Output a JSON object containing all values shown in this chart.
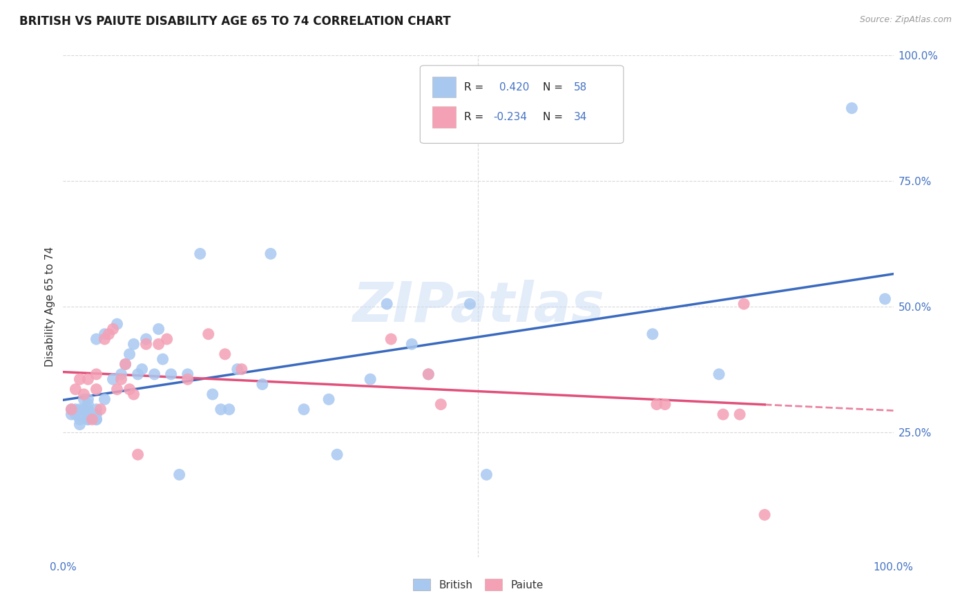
{
  "title": "BRITISH VS PAIUTE DISABILITY AGE 65 TO 74 CORRELATION CHART",
  "source": "Source: ZipAtlas.com",
  "ylabel": "Disability Age 65 to 74",
  "british_R": "0.420",
  "british_N": "58",
  "paiute_R": "-0.234",
  "paiute_N": "34",
  "british_color": "#a8c8f0",
  "paiute_color": "#f4a0b5",
  "british_line_color": "#3a6abf",
  "paiute_line_color": "#e0507a",
  "axis_color": "#4472c4",
  "label_color": "#333333",
  "watermark_color": "#ccddf5",
  "background_color": "#ffffff",
  "grid_color": "#d8d8d8",
  "ylim_min": 0.0,
  "ylim_max": 1.0,
  "xlim_min": 0.0,
  "xlim_max": 1.0,
  "british_x": [
    0.01,
    0.01,
    0.015,
    0.015,
    0.02,
    0.02,
    0.02,
    0.02,
    0.025,
    0.025,
    0.03,
    0.03,
    0.03,
    0.03,
    0.03,
    0.03,
    0.04,
    0.04,
    0.04,
    0.04,
    0.04,
    0.05,
    0.05,
    0.06,
    0.065,
    0.07,
    0.075,
    0.08,
    0.085,
    0.09,
    0.095,
    0.1,
    0.11,
    0.115,
    0.12,
    0.13,
    0.14,
    0.15,
    0.165,
    0.18,
    0.19,
    0.2,
    0.21,
    0.24,
    0.25,
    0.29,
    0.32,
    0.33,
    0.37,
    0.39,
    0.42,
    0.44,
    0.49,
    0.51,
    0.71,
    0.79,
    0.95,
    0.99
  ],
  "british_y": [
    0.285,
    0.295,
    0.285,
    0.295,
    0.265,
    0.275,
    0.285,
    0.295,
    0.295,
    0.315,
    0.275,
    0.275,
    0.285,
    0.295,
    0.305,
    0.315,
    0.275,
    0.275,
    0.285,
    0.295,
    0.435,
    0.315,
    0.445,
    0.355,
    0.465,
    0.365,
    0.385,
    0.405,
    0.425,
    0.365,
    0.375,
    0.435,
    0.365,
    0.455,
    0.395,
    0.365,
    0.165,
    0.365,
    0.605,
    0.325,
    0.295,
    0.295,
    0.375,
    0.345,
    0.605,
    0.295,
    0.315,
    0.205,
    0.355,
    0.505,
    0.425,
    0.365,
    0.505,
    0.165,
    0.445,
    0.365,
    0.895,
    0.515
  ],
  "paiute_x": [
    0.01,
    0.015,
    0.02,
    0.025,
    0.03,
    0.035,
    0.04,
    0.04,
    0.045,
    0.05,
    0.055,
    0.06,
    0.065,
    0.07,
    0.075,
    0.08,
    0.085,
    0.09,
    0.1,
    0.115,
    0.125,
    0.15,
    0.175,
    0.195,
    0.215,
    0.395,
    0.44,
    0.455,
    0.715,
    0.725,
    0.795,
    0.815,
    0.82,
    0.845
  ],
  "paiute_y": [
    0.295,
    0.335,
    0.355,
    0.325,
    0.355,
    0.275,
    0.335,
    0.365,
    0.295,
    0.435,
    0.445,
    0.455,
    0.335,
    0.355,
    0.385,
    0.335,
    0.325,
    0.205,
    0.425,
    0.425,
    0.435,
    0.355,
    0.445,
    0.405,
    0.375,
    0.435,
    0.365,
    0.305,
    0.305,
    0.305,
    0.285,
    0.285,
    0.505,
    0.085
  ]
}
